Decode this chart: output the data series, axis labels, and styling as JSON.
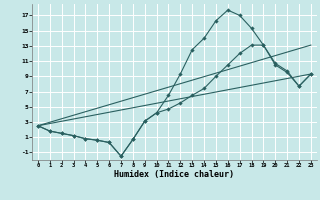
{
  "xlabel": "Humidex (Indice chaleur)",
  "bg_color": "#c8e8e8",
  "grid_color": "#ffffff",
  "line_color": "#2a6060",
  "xlim": [
    -0.5,
    23.5
  ],
  "ylim": [
    -2.0,
    18.5
  ],
  "xticks": [
    0,
    1,
    2,
    3,
    4,
    5,
    6,
    7,
    8,
    9,
    10,
    11,
    12,
    13,
    14,
    15,
    16,
    17,
    18,
    19,
    20,
    21,
    22,
    23
  ],
  "yticks": [
    -1,
    1,
    3,
    5,
    7,
    9,
    11,
    13,
    15,
    17
  ],
  "line1_x": [
    0,
    1,
    2,
    3,
    4,
    5,
    6,
    7,
    8,
    9,
    10,
    11,
    12,
    13,
    14,
    15,
    16,
    17,
    18,
    19,
    20,
    21,
    22,
    23
  ],
  "line1_y": [
    2.5,
    1.8,
    1.5,
    1.2,
    0.8,
    0.6,
    0.3,
    -1.5,
    0.7,
    3.1,
    4.2,
    6.5,
    9.3,
    12.5,
    14.0,
    16.3,
    17.7,
    17.0,
    15.3,
    13.1,
    10.7,
    9.7,
    7.7,
    9.3
  ],
  "line2_x": [
    0,
    1,
    2,
    3,
    4,
    5,
    6,
    7,
    8,
    9,
    10,
    11,
    12,
    13,
    14,
    15,
    16,
    17,
    18,
    19,
    20,
    21,
    22,
    23
  ],
  "line2_y": [
    2.5,
    1.8,
    1.5,
    1.2,
    0.8,
    0.6,
    0.3,
    -1.5,
    0.7,
    3.1,
    4.2,
    4.7,
    5.5,
    6.5,
    7.4,
    9.0,
    10.5,
    12.0,
    13.1,
    13.1,
    10.5,
    9.5,
    7.7,
    9.3
  ],
  "line3_x": [
    0,
    23
  ],
  "line3_y": [
    2.5,
    9.3
  ],
  "line4_x": [
    0,
    23
  ],
  "line4_y": [
    2.5,
    13.1
  ]
}
